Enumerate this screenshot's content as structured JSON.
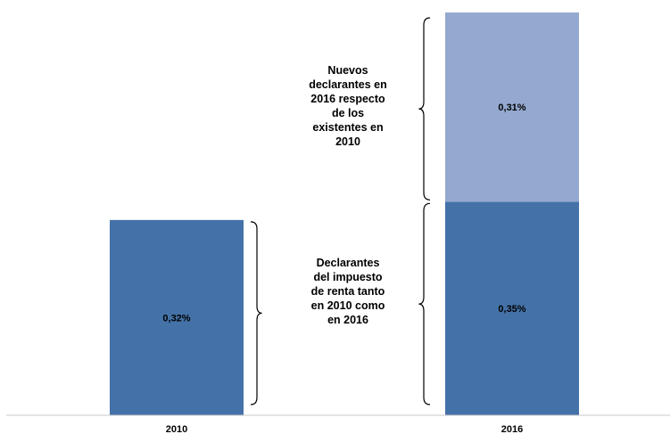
{
  "chart_data": {
    "type": "bar",
    "stacked": true,
    "categories": [
      "2010",
      "2016"
    ],
    "series": [
      {
        "values": [
          0.32,
          0.35
        ],
        "value_labels": [
          "0,32%",
          "0,35%"
        ],
        "color": "#4472a8"
      },
      {
        "values": [
          null,
          0.31
        ],
        "value_labels": [
          "",
          "0,31%"
        ],
        "color": "#94a9d0"
      }
    ],
    "ylim": [
      0,
      0.66
    ],
    "grid": false,
    "annotations": [
      {
        "lines": [
          "Declarantes",
          "del impuesto",
          "de renta tanto",
          "en 2010 como",
          "en 2016"
        ],
        "brackets": "around the 0,35% / 0,32% segments"
      },
      {
        "lines": [
          "Nuevos",
          "declarantes en",
          "2016 respecto",
          "de los",
          "existentes en",
          "2010"
        ],
        "brackets": "around the 0,31% segment"
      }
    ],
    "title": "",
    "xlabel": "",
    "ylabel": ""
  }
}
